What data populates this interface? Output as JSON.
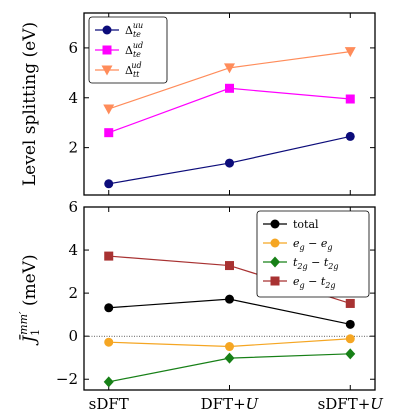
{
  "chart_data": [
    {
      "type": "line",
      "categories": [
        "sDFT",
        "DFT+U",
        "sDFT+U"
      ],
      "ylabel": "Level splitting (eV)",
      "ylim": [
        0.1,
        7.4
      ],
      "yticks": [
        2,
        4,
        6
      ],
      "legend_placement": "top-left",
      "series": [
        {
          "name": "Δ_te^uu",
          "label_base": "Δ",
          "label_sub": "te",
          "label_sup": "uu",
          "color": "#0c0c7a",
          "marker": "circle",
          "values": [
            0.55,
            1.38,
            2.45
          ]
        },
        {
          "name": "Δ_te^ud",
          "label_base": "Δ",
          "label_sub": "te",
          "label_sup": "ud",
          "color": "#ff00ff",
          "marker": "square",
          "values": [
            2.6,
            4.38,
            3.95
          ]
        },
        {
          "name": "Δ_tt^ud",
          "label_base": "Δ",
          "label_sub": "tt",
          "label_sup": "ud",
          "color": "#ff8c5a",
          "marker": "triangle-down",
          "values": [
            3.55,
            5.2,
            5.85
          ]
        }
      ]
    },
    {
      "type": "line",
      "categories": [
        "sDFT",
        "DFT+U",
        "sDFT+U"
      ],
      "ylabel": "J̄₁^{mm′} (meV)",
      "ylim": [
        -2.5,
        6.0
      ],
      "yticks": [
        -2,
        0,
        2,
        4,
        6
      ],
      "reference_line": 0,
      "legend_placement": "top-right",
      "series": [
        {
          "name": "total",
          "label_parts": [
            "total"
          ],
          "color": "#000000",
          "marker": "circle",
          "values": [
            1.32,
            1.72,
            0.55
          ]
        },
        {
          "name": "e_g − e_g",
          "label_parts": [
            "e",
            "g",
            " − ",
            "e",
            "g"
          ],
          "color": "#f5a623",
          "marker": "circle",
          "values": [
            -0.28,
            -0.48,
            -0.12
          ]
        },
        {
          "name": "t_2g − t_2g",
          "label_parts": [
            "t",
            "2g",
            " − ",
            "t",
            "2g"
          ],
          "color": "#178017",
          "marker": "diamond",
          "values": [
            -2.12,
            -1.02,
            -0.82
          ]
        },
        {
          "name": "e_g − t_2g",
          "label_parts": [
            "e",
            "g",
            " − ",
            "t",
            "2g"
          ],
          "color": "#a83232",
          "marker": "square",
          "values": [
            3.72,
            3.28,
            1.52
          ]
        }
      ]
    }
  ]
}
